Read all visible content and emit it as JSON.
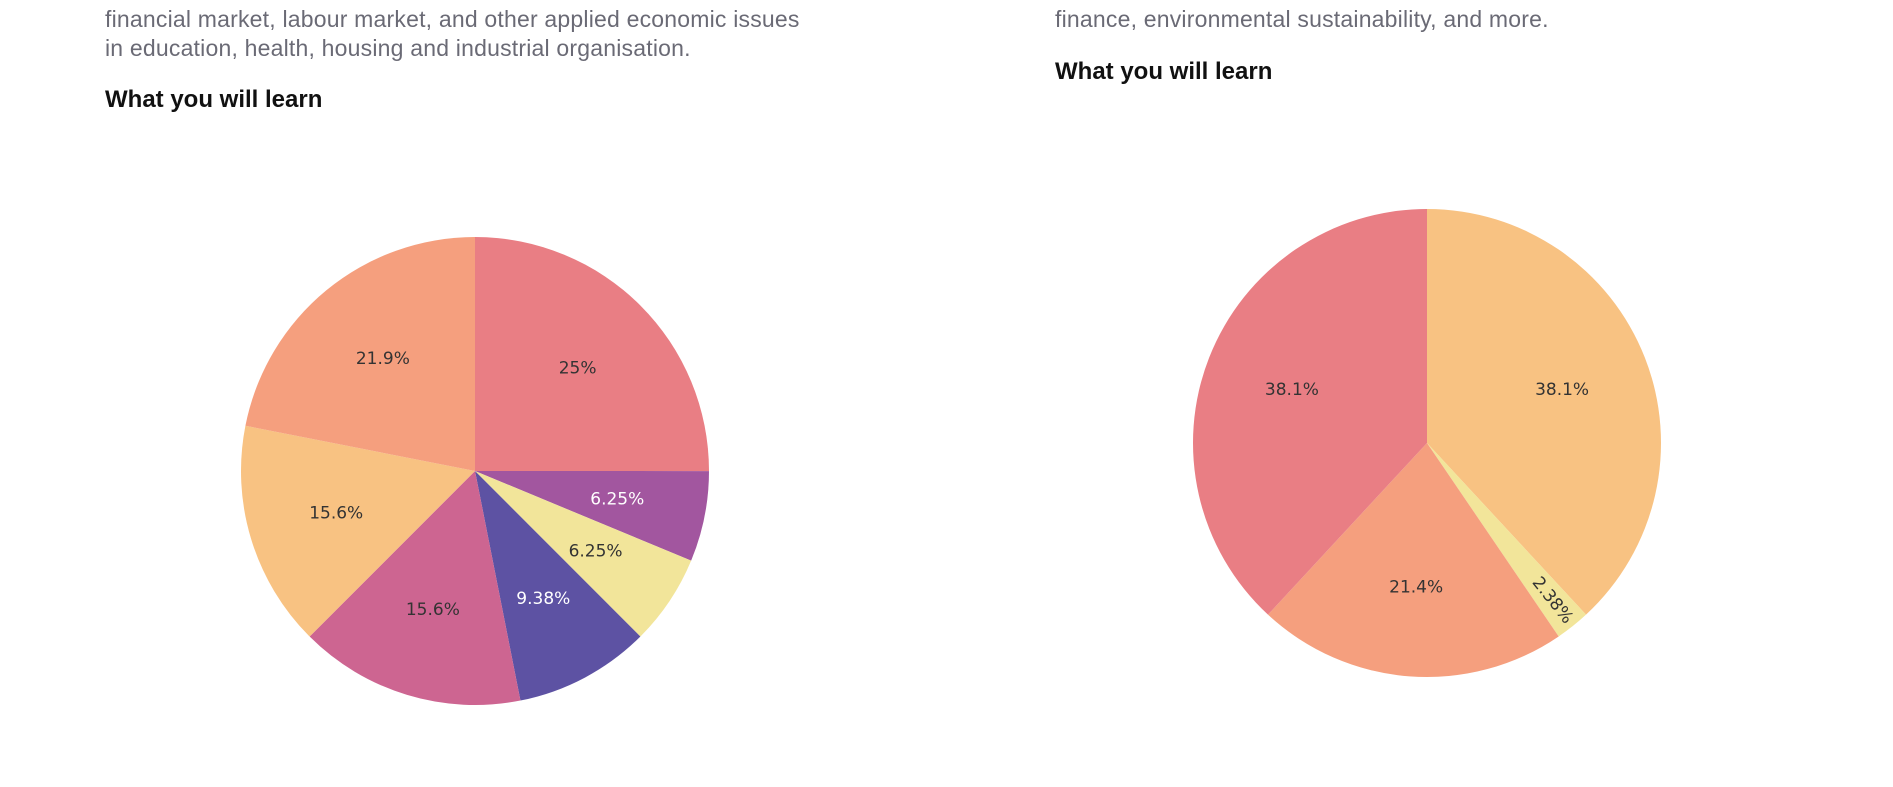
{
  "left": {
    "description_lines": [
      "financial market, labour market, and other applied economic issues",
      "in education, health, housing and industrial organisation."
    ],
    "heading": "What you will learn"
  },
  "right": {
    "description_lines": [
      "finance, environmental sustainability, and more."
    ],
    "heading": "What you will learn"
  },
  "chart_data": [
    {
      "type": "pie",
      "title": "",
      "slices": [
        {
          "value": 25,
          "label": "25%",
          "color": "#e97e84",
          "text_color": "#333333"
        },
        {
          "value": 6.25,
          "label": "6.25%",
          "color": "#a2569f",
          "text_color": "#ffffff"
        },
        {
          "value": 6.25,
          "label": "6.25%",
          "color": "#f2e59a",
          "text_color": "#333333"
        },
        {
          "value": 9.38,
          "label": "9.38%",
          "color": "#5d52a3",
          "text_color": "#ffffff"
        },
        {
          "value": 15.6,
          "label": "15.6%",
          "color": "#cd6591",
          "text_color": "#333333"
        },
        {
          "value": 15.6,
          "label": "15.6%",
          "color": "#f8c282",
          "text_color": "#333333"
        },
        {
          "value": 21.9,
          "label": "21.9%",
          "color": "#f59f7e",
          "text_color": "#333333"
        }
      ]
    },
    {
      "type": "pie",
      "title": "",
      "slices": [
        {
          "value": 38.1,
          "label": "38.1%",
          "color": "#f8c282",
          "text_color": "#333333"
        },
        {
          "value": 2.38,
          "label": "2.38%",
          "color": "#f2e59a",
          "text_color": "#333333"
        },
        {
          "value": 21.4,
          "label": "21.4%",
          "color": "#f59f7e",
          "text_color": "#333333"
        },
        {
          "value": 38.1,
          "label": "38.1%",
          "color": "#e97e84",
          "text_color": "#333333"
        }
      ]
    }
  ]
}
